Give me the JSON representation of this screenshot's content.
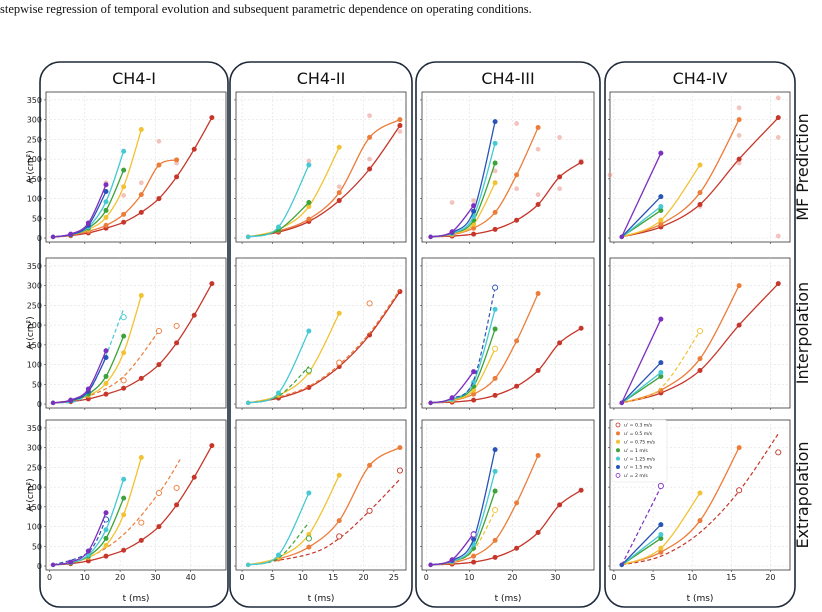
{
  "caption": "stepwise regression of temporal evolution and subsequent parametric dependence on operating conditions.",
  "columns": [
    "CH4-I",
    "CH4-II",
    "CH4-III",
    "CH4-IV"
  ],
  "rows": [
    "MF Prediction",
    "Interpolation",
    "Extrapolation"
  ],
  "colors": {
    "0.3": "#c6362a",
    "0.5": "#ec7c3a",
    "0.75": "#f1c232",
    "1": "#3ca33a",
    "1.25": "#45c9d4",
    "1.5": "#2a53b8",
    "2": "#7d2fbf"
  },
  "legend": {
    "entries": [
      "u' = 0.3 m/s",
      "u' = 0.5 m/s",
      "u' = 0.75 m/s",
      "u' = 1 m/s",
      "u' = 1.25 m/s",
      "u' = 1.5 m/s",
      "u' = 2 m/s"
    ],
    "placement": "upper-left of CH4-IV extrapolation panel"
  },
  "chart_data": {
    "type": "line",
    "ylabel": "A (cm²)",
    "xlabel": "t (ms)",
    "ylim": [
      -10,
      370
    ],
    "yticks": [
      0,
      50,
      100,
      150,
      200,
      250,
      300,
      350
    ],
    "grid": true,
    "panels": [
      {
        "column": "CH4-I",
        "xlim": [
          -1,
          50
        ],
        "xticks": [
          0,
          10,
          20,
          30,
          40
        ],
        "series": {
          "0.3": [
            [
              1,
              3
            ],
            [
              6,
              6
            ],
            [
              11,
              13
            ],
            [
              16,
              25
            ],
            [
              21,
              40
            ],
            [
              26,
              65
            ],
            [
              31,
              100
            ],
            [
              36,
              155
            ],
            [
              41,
              225
            ],
            [
              46,
              305
            ]
          ],
          "0.5": [
            [
              1,
              3
            ],
            [
              6,
              7
            ],
            [
              11,
              17
            ],
            [
              16,
              32
            ],
            [
              21,
              60
            ],
            [
              26,
              110
            ],
            [
              31,
              185
            ],
            [
              36,
              198
            ]
          ],
          "0.75": [
            [
              1,
              3
            ],
            [
              6,
              8
            ],
            [
              11,
              22
            ],
            [
              16,
              52
            ],
            [
              21,
              130
            ],
            [
              26,
              275
            ]
          ],
          "1": [
            [
              1,
              3
            ],
            [
              6,
              8
            ],
            [
              11,
              25
            ],
            [
              16,
              70
            ],
            [
              21,
              172
            ]
          ],
          "1.25": [
            [
              1,
              3
            ],
            [
              6,
              9
            ],
            [
              11,
              28
            ],
            [
              16,
              92
            ],
            [
              21,
              220
            ]
          ],
          "1.5": [
            [
              1,
              3
            ],
            [
              6,
              9
            ],
            [
              11,
              32
            ],
            [
              16,
              118
            ]
          ],
          "2": [
            [
              1,
              3
            ],
            [
              6,
              10
            ],
            [
              11,
              38
            ],
            [
              16,
              135
            ]
          ]
        },
        "mf_scatter": [
          [
            16,
            140
          ],
          [
            26,
            140
          ],
          [
            31,
            245
          ],
          [
            36,
            190
          ],
          [
            21,
            108
          ]
        ],
        "interp_dashed": {
          "0.5": [
            [
              1,
              3
            ],
            [
              11,
              20
            ],
            [
              21,
              70
            ],
            [
              31,
              185
            ]
          ],
          "1.25": [
            [
              1,
              3
            ],
            [
              11,
              30
            ],
            [
              21,
              240
            ]
          ]
        },
        "interp_hollow": {
          "0.5": [
            [
              21,
              60
            ],
            [
              31,
              185
            ],
            [
              36,
              198
            ]
          ],
          "1.25": [
            [
              21,
              220
            ]
          ]
        },
        "extrap_dashed": {
          "0.5": [
            [
              1,
              3
            ],
            [
              11,
              22
            ],
            [
              21,
              80
            ],
            [
              31,
              185
            ],
            [
              37,
              270
            ]
          ],
          "1.5": [
            [
              1,
              3
            ],
            [
              11,
              35
            ],
            [
              16,
              120
            ]
          ]
        },
        "extrap_hollow": {
          "0.5": [
            [
              26,
              110
            ],
            [
              31,
              185
            ],
            [
              36,
              198
            ]
          ],
          "1.5": [
            [
              16,
              118
            ]
          ]
        }
      },
      {
        "column": "CH4-II",
        "xlim": [
          -1,
          27
        ],
        "xticks": [
          0,
          5,
          10,
          15,
          20,
          25
        ],
        "series": {
          "0.3": [
            [
              1,
              3
            ],
            [
              6,
              15
            ],
            [
              11,
              42
            ],
            [
              16,
              95
            ],
            [
              21,
              175
            ],
            [
              26,
              285
            ]
          ],
          "0.5": [
            [
              1,
              3
            ],
            [
              6,
              18
            ],
            [
              11,
              48
            ],
            [
              16,
              115
            ],
            [
              21,
              255
            ],
            [
              26,
              300
            ]
          ],
          "0.75": [
            [
              1,
              3
            ],
            [
              6,
              22
            ],
            [
              11,
              80
            ],
            [
              16,
              230
            ]
          ],
          "1": [
            [
              1,
              3
            ],
            [
              6,
              20
            ],
            [
              11,
              90
            ]
          ],
          "1.25": [
            [
              1,
              3
            ],
            [
              6,
              28
            ],
            [
              11,
              185
            ]
          ]
        },
        "mf_scatter": [
          [
            16,
            130
          ],
          [
            21,
            310
          ],
          [
            26,
            270
          ],
          [
            11,
            195
          ],
          [
            21,
            200
          ]
        ],
        "interp_dashed": {
          "0.5": [
            [
              1,
              3
            ],
            [
              6,
              18
            ],
            [
              11,
              45
            ],
            [
              16,
              100
            ],
            [
              21,
              180
            ],
            [
              26,
              290
            ]
          ],
          "1": [
            [
              1,
              3
            ],
            [
              6,
              20
            ],
            [
              11,
              95
            ]
          ]
        },
        "interp_hollow": {
          "0.5": [
            [
              16,
              105
            ],
            [
              21,
              255
            ]
          ],
          "1": [
            [
              11,
              85
            ]
          ]
        },
        "extrap_dashed": {
          "0.3": [
            [
              1,
              3
            ],
            [
              11,
              30
            ],
            [
              16,
              70
            ],
            [
              21,
              140
            ],
            [
              26,
              220
            ]
          ],
          "1": [
            [
              1,
              3
            ],
            [
              6,
              20
            ],
            [
              11,
              110
            ]
          ]
        },
        "extrap_hollow": {
          "0.3": [
            [
              16,
              75
            ],
            [
              21,
              140
            ],
            [
              26,
              242
            ]
          ],
          "1": [
            [
              11,
              70
            ]
          ]
        }
      },
      {
        "column": "CH4-III",
        "xlim": [
          -1,
          39
        ],
        "xticks": [
          0,
          10,
          20,
          30
        ],
        "series": {
          "0.3": [
            [
              1,
              3
            ],
            [
              6,
              5
            ],
            [
              11,
              10
            ],
            [
              16,
              22
            ],
            [
              21,
              45
            ],
            [
              26,
              85
            ],
            [
              31,
              155
            ],
            [
              36,
              192
            ]
          ],
          "0.5": [
            [
              1,
              3
            ],
            [
              6,
              8
            ],
            [
              11,
              25
            ],
            [
              16,
              65
            ],
            [
              21,
              160
            ],
            [
              26,
              280
            ]
          ],
          "0.75": [
            [
              1,
              3
            ],
            [
              6,
              10
            ],
            [
              11,
              35
            ],
            [
              16,
              140
            ]
          ],
          "1": [
            [
              1,
              3
            ],
            [
              6,
              12
            ],
            [
              11,
              45
            ],
            [
              16,
              190
            ]
          ],
          "1.25": [
            [
              1,
              3
            ],
            [
              6,
              12
            ],
            [
              11,
              55
            ],
            [
              16,
              240
            ]
          ],
          "1.5": [
            [
              1,
              3
            ],
            [
              6,
              14
            ],
            [
              11,
              68
            ],
            [
              16,
              295
            ]
          ],
          "2": [
            [
              1,
              3
            ],
            [
              6,
              16
            ],
            [
              11,
              82
            ]
          ]
        },
        "mf_scatter": [
          [
            6,
            90
          ],
          [
            11,
            95
          ],
          [
            21,
            290
          ],
          [
            26,
            225
          ],
          [
            31,
            255
          ],
          [
            36,
            195
          ],
          [
            31,
            125
          ],
          [
            26,
            110
          ],
          [
            21,
            125
          ],
          [
            11,
            60
          ],
          [
            16,
            170
          ]
        ],
        "interp_dashed": {
          "1.5": [
            [
              1,
              3
            ],
            [
              6,
              14
            ],
            [
              11,
              60
            ],
            [
              16,
              295
            ]
          ]
        },
        "interp_hollow": {
          "1.5": [
            [
              16,
              295
            ]
          ],
          "0.75": [
            [
              16,
              140
            ]
          ]
        },
        "extrap_dashed": {
          "0.75": [
            [
              1,
              3
            ],
            [
              6,
              10
            ],
            [
              11,
              40
            ],
            [
              16,
              140
            ]
          ]
        },
        "extrap_hollow": {
          "0.75": [
            [
              16,
              142
            ]
          ],
          "2": [
            [
              11,
              80
            ]
          ]
        }
      },
      {
        "column": "CH4-IV",
        "xlim": [
          -0.5,
          22.5
        ],
        "xticks": [
          0,
          5,
          10,
          15,
          20
        ],
        "series": {
          "0.3": [
            [
              1,
              3
            ],
            [
              6,
              28
            ],
            [
              11,
              85
            ],
            [
              16,
              200
            ],
            [
              21,
              305
            ]
          ],
          "0.5": [
            [
              1,
              3
            ],
            [
              6,
              35
            ],
            [
              11,
              115
            ],
            [
              16,
              300
            ]
          ],
          "0.75": [
            [
              1,
              3
            ],
            [
              6,
              45
            ],
            [
              11,
              185
            ]
          ],
          "1": [
            [
              1,
              3
            ],
            [
              6,
              70
            ]
          ],
          "1.25": [
            [
              1,
              3
            ],
            [
              6,
              80
            ]
          ],
          "1.5": [
            [
              1,
              3
            ],
            [
              6,
              105
            ]
          ],
          "2": [
            [
              1,
              3
            ],
            [
              6,
              215
            ]
          ]
        },
        "mf_scatter": [
          [
            16,
            330
          ],
          [
            16,
            260
          ],
          [
            21,
            355
          ],
          [
            21,
            255
          ],
          [
            21,
            5
          ],
          [
            -0.5,
            160
          ],
          [
            16,
            190
          ],
          [
            11,
            80
          ]
        ],
        "interp_dashed": {
          "0.75": [
            [
              1,
              3
            ],
            [
              6,
              40
            ],
            [
              11,
              185
            ]
          ]
        },
        "interp_hollow": {
          "0.75": [
            [
              11,
              185
            ]
          ]
        },
        "extrap_dashed": {
          "0.3": [
            [
              1,
              3
            ],
            [
              6,
              25
            ],
            [
              11,
              85
            ],
            [
              16,
              190
            ],
            [
              21,
              335
            ]
          ],
          "2": [
            [
              1,
              3
            ],
            [
              6,
              200
            ]
          ]
        },
        "extrap_hollow": {
          "0.3": [
            [
              16,
              192
            ],
            [
              21,
              288
            ]
          ],
          "2": [
            [
              6,
              203
            ]
          ]
        }
      }
    ]
  }
}
